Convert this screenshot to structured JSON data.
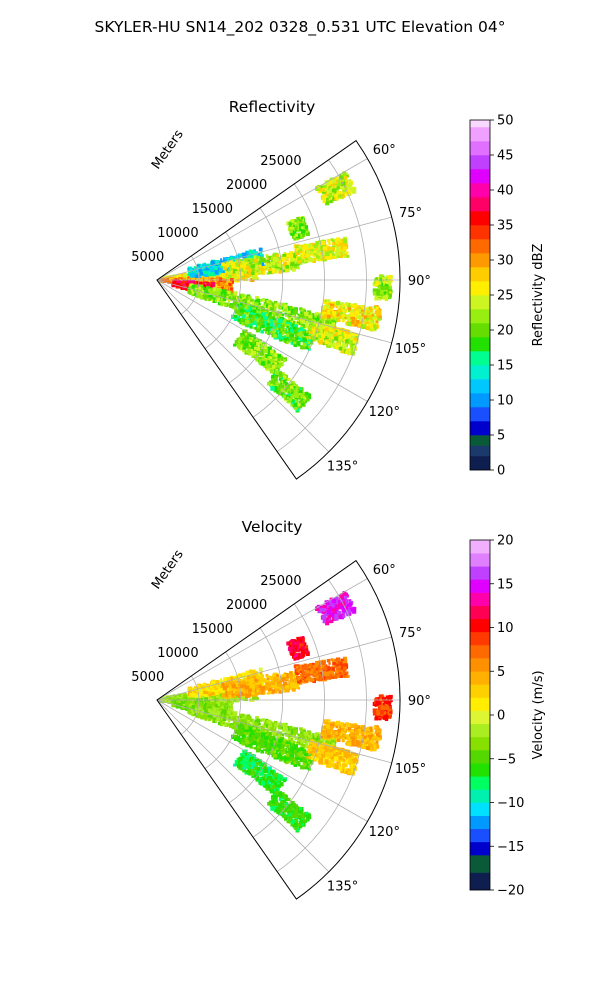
{
  "suptitle": "SKYLER-HU  SN14_202  0328_0.531 UTC Elevation 04°",
  "chart_data": [
    {
      "type": "polar-sector",
      "title": "Reflectivity",
      "field": "reflectivity",
      "range_label": "Meters",
      "range_ticks": [
        "5000",
        "10000",
        "15000",
        "20000",
        "25000"
      ],
      "range_values": [
        5000,
        10000,
        15000,
        20000,
        25000
      ],
      "rmax": 29000,
      "theta_range": [
        55,
        145
      ],
      "theta_ticks": [
        "60°",
        "75°",
        "90°",
        "105°",
        "120°",
        "135°"
      ],
      "theta_values": [
        60,
        75,
        90,
        105,
        120,
        135
      ],
      "colorbar": {
        "label": "Reflectivity dBZ",
        "min": 0,
        "max": 50,
        "ticks": [
          "0",
          "5",
          "10",
          "15",
          "20",
          "25",
          "30",
          "35",
          "40",
          "45",
          "50"
        ],
        "tick_values": [
          0,
          5,
          10,
          15,
          20,
          25,
          30,
          35,
          40,
          45,
          50
        ]
      },
      "echoes": [
        {
          "az": 85,
          "r0": 0,
          "r1": 12000,
          "v": 27
        },
        {
          "az": 95,
          "r0": 0,
          "r1": 9000,
          "v": 30
        },
        {
          "az": 100,
          "r0": 2000,
          "r1": 7000,
          "v": 36
        },
        {
          "az": 78,
          "r0": 4000,
          "r1": 13000,
          "v": 13
        },
        {
          "az": 82,
          "r0": 8000,
          "r1": 17000,
          "v": 24
        },
        {
          "az": 80,
          "r0": 17000,
          "r1": 23000,
          "v": 25
        },
        {
          "az": 63,
          "r0": 22000,
          "r1": 26000,
          "v": 24
        },
        {
          "az": 70,
          "r0": 17000,
          "r1": 19000,
          "v": 21
        },
        {
          "az": 105,
          "r0": 4000,
          "r1": 22000,
          "v": 21
        },
        {
          "az": 112,
          "r0": 10000,
          "r1": 20000,
          "v": 19
        },
        {
          "az": 100,
          "r0": 20000,
          "r1": 27000,
          "v": 26
        },
        {
          "az": 92,
          "r0": 26000,
          "r1": 28000,
          "v": 22
        },
        {
          "az": 125,
          "r0": 12000,
          "r1": 18000,
          "v": 21
        },
        {
          "az": 130,
          "r0": 18000,
          "r1": 23000,
          "v": 20
        },
        {
          "az": 108,
          "r0": 19000,
          "r1": 25000,
          "v": 24
        }
      ]
    },
    {
      "type": "polar-sector",
      "title": "Velocity",
      "field": "velocity",
      "range_label": "Meters",
      "range_ticks": [
        "5000",
        "10000",
        "15000",
        "20000",
        "25000"
      ],
      "range_values": [
        5000,
        10000,
        15000,
        20000,
        25000
      ],
      "rmax": 29000,
      "theta_range": [
        55,
        145
      ],
      "theta_ticks": [
        "60°",
        "75°",
        "90°",
        "105°",
        "120°",
        "135°"
      ],
      "theta_values": [
        60,
        75,
        90,
        105,
        120,
        135
      ],
      "colorbar": {
        "label": "Velocity (m/s)",
        "min": -20,
        "max": 20,
        "ticks": [
          "−20",
          "−15",
          "−10",
          "−5",
          "0",
          "5",
          "10",
          "15",
          "20"
        ],
        "tick_values": [
          -20,
          -15,
          -10,
          -5,
          0,
          5,
          10,
          15,
          20
        ]
      },
      "echoes": [
        {
          "az": 85,
          "r0": 0,
          "r1": 12000,
          "v": -2
        },
        {
          "az": 95,
          "r0": 0,
          "r1": 9000,
          "v": -3
        },
        {
          "az": 100,
          "r0": 2000,
          "r1": 7000,
          "v": -4
        },
        {
          "az": 78,
          "r0": 4000,
          "r1": 13000,
          "v": 2
        },
        {
          "az": 82,
          "r0": 8000,
          "r1": 17000,
          "v": 4
        },
        {
          "az": 80,
          "r0": 17000,
          "r1": 23000,
          "v": 7
        },
        {
          "az": 63,
          "r0": 22000,
          "r1": 26000,
          "v": 15
        },
        {
          "az": 70,
          "r0": 17000,
          "r1": 19000,
          "v": 11
        },
        {
          "az": 105,
          "r0": 4000,
          "r1": 22000,
          "v": -3
        },
        {
          "az": 112,
          "r0": 10000,
          "r1": 20000,
          "v": -5
        },
        {
          "az": 100,
          "r0": 20000,
          "r1": 27000,
          "v": 4
        },
        {
          "az": 92,
          "r0": 26000,
          "r1": 28000,
          "v": 9
        },
        {
          "az": 125,
          "r0": 12000,
          "r1": 18000,
          "v": -7
        },
        {
          "az": 130,
          "r0": 18000,
          "r1": 23000,
          "v": -6
        },
        {
          "az": 108,
          "r0": 19000,
          "r1": 25000,
          "v": 3
        }
      ]
    }
  ]
}
